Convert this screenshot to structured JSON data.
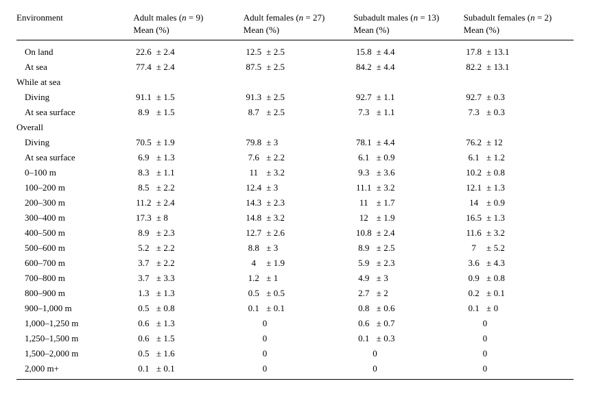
{
  "table": {
    "font_family": "Times New Roman",
    "font_size_pt": 10,
    "background_color": "#ffffff",
    "text_color": "#000000",
    "rule_color": "#000000",
    "columns": [
      {
        "key": "env",
        "label_line1": "Environment",
        "label_line2": ""
      },
      {
        "key": "am",
        "label_line1": "Adult males (n = 9)",
        "label_line2": "Mean (%)"
      },
      {
        "key": "af",
        "label_line1": "Adult females (n = 27)",
        "label_line2": "Mean (%)"
      },
      {
        "key": "sm",
        "label_line1": "Subadult males (n = 13)",
        "label_line2": "Mean (%)"
      },
      {
        "key": "sf",
        "label_line1": "Subadult females (n = 2)",
        "label_line2": "Mean (%)"
      }
    ],
    "rows": [
      {
        "label": "On land",
        "indent": 1,
        "vals": [
          {
            "m": "22.6",
            "e": "2.4"
          },
          {
            "m": "12.5",
            "e": "2.5"
          },
          {
            "m": "15.8",
            "e": "4.4"
          },
          {
            "m": "17.8",
            "e": "13.1"
          }
        ]
      },
      {
        "label": "At sea",
        "indent": 1,
        "vals": [
          {
            "m": "77.4",
            "e": "2.4"
          },
          {
            "m": "87.5",
            "e": "2.5"
          },
          {
            "m": "84.2",
            "e": "4.4"
          },
          {
            "m": "82.2",
            "e": "13.1"
          }
        ]
      },
      {
        "label": "While at sea",
        "indent": 0,
        "vals": [
          null,
          null,
          null,
          null
        ]
      },
      {
        "label": "Diving",
        "indent": 1,
        "vals": [
          {
            "m": "91.1",
            "e": "1.5"
          },
          {
            "m": "91.3",
            "e": "2.5"
          },
          {
            "m": "92.7",
            "e": "1.1"
          },
          {
            "m": "92.7",
            "e": "0.3"
          }
        ]
      },
      {
        "label": "At sea surface",
        "indent": 1,
        "vals": [
          {
            "m": "8.9",
            "e": "1.5"
          },
          {
            "m": "8.7",
            "e": "2.5"
          },
          {
            "m": "7.3",
            "e": "1.1"
          },
          {
            "m": "7.3",
            "e": "0.3"
          }
        ]
      },
      {
        "label": "Overall",
        "indent": 0,
        "vals": [
          null,
          null,
          null,
          null
        ]
      },
      {
        "label": "Diving",
        "indent": 1,
        "vals": [
          {
            "m": "70.5",
            "e": "1.9"
          },
          {
            "m": "79.8",
            "e": "3"
          },
          {
            "m": "78.1",
            "e": "4.4"
          },
          {
            "m": "76.2",
            "e": "12"
          }
        ]
      },
      {
        "label": "At sea surface",
        "indent": 1,
        "vals": [
          {
            "m": "6.9",
            "e": "1.3"
          },
          {
            "m": "7.6",
            "e": "2.2"
          },
          {
            "m": "6.1",
            "e": "0.9"
          },
          {
            "m": "6.1",
            "e": "1.2"
          }
        ]
      },
      {
        "label": "0–100 m",
        "indent": 1,
        "vals": [
          {
            "m": "8.3",
            "e": "1.1"
          },
          {
            "m": "11",
            "e": "3.2"
          },
          {
            "m": "9.3",
            "e": "3.6"
          },
          {
            "m": "10.2",
            "e": "0.8"
          }
        ]
      },
      {
        "label": "100–200 m",
        "indent": 1,
        "vals": [
          {
            "m": "8.5",
            "e": "2.2"
          },
          {
            "m": "12.4",
            "e": "3"
          },
          {
            "m": "11.1",
            "e": "3.2"
          },
          {
            "m": "12.1",
            "e": "1.3"
          }
        ]
      },
      {
        "label": "200–300 m",
        "indent": 1,
        "vals": [
          {
            "m": "11.2",
            "e": "2.4"
          },
          {
            "m": "14.3",
            "e": "2.3"
          },
          {
            "m": "11",
            "e": "1.7"
          },
          {
            "m": "14",
            "e": "0.9"
          }
        ]
      },
      {
        "label": "300–400 m",
        "indent": 1,
        "vals": [
          {
            "m": "17.3",
            "e": "8"
          },
          {
            "m": "14.8",
            "e": "3.2"
          },
          {
            "m": "12",
            "e": "1.9"
          },
          {
            "m": "16.5",
            "e": "1.3"
          }
        ]
      },
      {
        "label": "400–500 m",
        "indent": 1,
        "vals": [
          {
            "m": "8.9",
            "e": "2.3"
          },
          {
            "m": "12.7",
            "e": "2.6"
          },
          {
            "m": "10.8",
            "e": "2.4"
          },
          {
            "m": "11.6",
            "e": "3.2"
          }
        ]
      },
      {
        "label": "500–600 m",
        "indent": 1,
        "vals": [
          {
            "m": "5.2",
            "e": "2.2"
          },
          {
            "m": "8.8",
            "e": "3"
          },
          {
            "m": "8.9",
            "e": "2.5"
          },
          {
            "m": "7",
            "e": "5.2"
          }
        ]
      },
      {
        "label": "600–700 m",
        "indent": 1,
        "vals": [
          {
            "m": "3.7",
            "e": "2.2"
          },
          {
            "m": "4",
            "e": "1.9"
          },
          {
            "m": "5.9",
            "e": "2.3"
          },
          {
            "m": "3.6",
            "e": "4.3"
          }
        ]
      },
      {
        "label": "700–800 m",
        "indent": 1,
        "vals": [
          {
            "m": "3.7",
            "e": "3.3"
          },
          {
            "m": "1.2",
            "e": "1"
          },
          {
            "m": "4.9",
            "e": "3"
          },
          {
            "m": "0.9",
            "e": "0.8"
          }
        ]
      },
      {
        "label": "800–900 m",
        "indent": 1,
        "vals": [
          {
            "m": "1.3",
            "e": "1.3"
          },
          {
            "m": "0.5",
            "e": "0.5"
          },
          {
            "m": "2.7",
            "e": "2"
          },
          {
            "m": "0.2",
            "e": "0.1"
          }
        ]
      },
      {
        "label": "900–1,000 m",
        "indent": 1,
        "vals": [
          {
            "m": "0.5",
            "e": "0.8"
          },
          {
            "m": "0.1",
            "e": "0.1"
          },
          {
            "m": "0.8",
            "e": "0.6"
          },
          {
            "m": "0.1",
            "e": "0"
          }
        ]
      },
      {
        "label": "1,000–1,250 m",
        "indent": 1,
        "vals": [
          {
            "m": "0.6",
            "e": "1.3"
          },
          {
            "zero": "0"
          },
          {
            "m": "0.6",
            "e": "0.7"
          },
          {
            "zero": "0"
          }
        ]
      },
      {
        "label": "1,250–1,500 m",
        "indent": 1,
        "vals": [
          {
            "m": "0.6",
            "e": "1.5"
          },
          {
            "zero": "0"
          },
          {
            "m": "0.1",
            "e": "0.3"
          },
          {
            "zero": "0"
          }
        ]
      },
      {
        "label": "1,500–2,000 m",
        "indent": 1,
        "vals": [
          {
            "m": "0.5",
            "e": "1.6"
          },
          {
            "zero": "0"
          },
          {
            "zero": "0"
          },
          {
            "zero": "0"
          }
        ]
      },
      {
        "label": "2,000 m+",
        "indent": 1,
        "vals": [
          {
            "m": "0.1",
            "e": "0.1"
          },
          {
            "zero": "0"
          },
          {
            "zero": "0"
          },
          {
            "zero": "0"
          }
        ]
      }
    ],
    "plus_minus_glyph": "±"
  }
}
